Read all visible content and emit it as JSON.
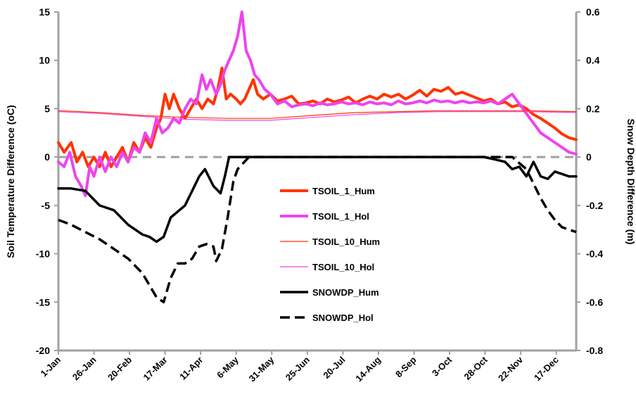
{
  "chart_data": {
    "type": "line",
    "title": "",
    "xlabel": "",
    "ylabel": "Soil Temperature Difference (oC)",
    "y2label": "Snow Depth Difference  (m)",
    "x_domain_days": [
      1,
      365
    ],
    "xticks": [
      {
        "day": 1,
        "label": "1-Jan"
      },
      {
        "day": 26,
        "label": "26-Jan"
      },
      {
        "day": 51,
        "label": "20-Feb"
      },
      {
        "day": 76,
        "label": "17-Mar"
      },
      {
        "day": 101,
        "label": "11-Apr"
      },
      {
        "day": 126,
        "label": "6-May"
      },
      {
        "day": 151,
        "label": "31-May"
      },
      {
        "day": 176,
        "label": "25-Jun"
      },
      {
        "day": 201,
        "label": "20-Jul"
      },
      {
        "day": 226,
        "label": "14-Aug"
      },
      {
        "day": 251,
        "label": "8-Sep"
      },
      {
        "day": 276,
        "label": "3-Oct"
      },
      {
        "day": 301,
        "label": "28-Oct"
      },
      {
        "day": 326,
        "label": "22-Nov"
      },
      {
        "day": 351,
        "label": "17-Dec"
      }
    ],
    "ylim": [
      -20,
      15
    ],
    "yticks": [
      -20,
      -15,
      -10,
      -5,
      0,
      5,
      10,
      15
    ],
    "ylim2": [
      -0.8,
      0.6
    ],
    "yticks2": [
      {
        "value": -0.8,
        "label": "-0.8"
      },
      {
        "value": -0.6,
        "label": "-0.6"
      },
      {
        "value": -0.4,
        "label": "-0.4"
      },
      {
        "value": -0.2,
        "label": "-0.2"
      },
      {
        "value": 0,
        "label": "0"
      },
      {
        "value": 0.2,
        "label": "0.2"
      },
      {
        "value": 0.4,
        "label": "0.4"
      },
      {
        "value": 0.6,
        "label": "0.6"
      }
    ],
    "zero_line_color": "#a0a0a0",
    "axis_color": "#a0a0a0",
    "legend_position": "center",
    "series": [
      {
        "name": "TSOIL_1_Hum",
        "axis": "left",
        "color": "#ff3300",
        "width": 4,
        "dash": "",
        "points": [
          [
            1,
            1.5
          ],
          [
            5,
            0.5
          ],
          [
            10,
            1.5
          ],
          [
            14,
            -0.5
          ],
          [
            18,
            0.5
          ],
          [
            22,
            -1
          ],
          [
            26,
            0
          ],
          [
            30,
            -1
          ],
          [
            34,
            0.5
          ],
          [
            38,
            -1
          ],
          [
            42,
            0
          ],
          [
            46,
            1
          ],
          [
            50,
            -0.5
          ],
          [
            54,
            1.5
          ],
          [
            58,
            0.5
          ],
          [
            62,
            2
          ],
          [
            66,
            1
          ],
          [
            70,
            3
          ],
          [
            73,
            4
          ],
          [
            76,
            6.5
          ],
          [
            79,
            5
          ],
          [
            82,
            6.5
          ],
          [
            86,
            5
          ],
          [
            90,
            4
          ],
          [
            94,
            5
          ],
          [
            98,
            6
          ],
          [
            102,
            5
          ],
          [
            106,
            6
          ],
          [
            110,
            5.5
          ],
          [
            113,
            7
          ],
          [
            116,
            9.2
          ],
          [
            119,
            6
          ],
          [
            122,
            6.5
          ],
          [
            126,
            6
          ],
          [
            129,
            5.5
          ],
          [
            132,
            6
          ],
          [
            135,
            7
          ],
          [
            138,
            8
          ],
          [
            141,
            6.5
          ],
          [
            145,
            6
          ],
          [
            150,
            6.5
          ],
          [
            155,
            5.8
          ],
          [
            160,
            6
          ],
          [
            165,
            6.3
          ],
          [
            170,
            5.5
          ],
          [
            175,
            5.6
          ],
          [
            180,
            5.8
          ],
          [
            185,
            5.5
          ],
          [
            190,
            6
          ],
          [
            195,
            5.7
          ],
          [
            200,
            5.9
          ],
          [
            205,
            6.2
          ],
          [
            210,
            5.6
          ],
          [
            215,
            6
          ],
          [
            220,
            6.3
          ],
          [
            225,
            6
          ],
          [
            230,
            6.5
          ],
          [
            235,
            6.2
          ],
          [
            240,
            6.5
          ],
          [
            245,
            6
          ],
          [
            250,
            6.4
          ],
          [
            255,
            6.9
          ],
          [
            260,
            6.3
          ],
          [
            265,
            7
          ],
          [
            270,
            6.8
          ],
          [
            275,
            7.2
          ],
          [
            280,
            6.5
          ],
          [
            285,
            6.7
          ],
          [
            290,
            6.4
          ],
          [
            295,
            6.1
          ],
          [
            300,
            5.8
          ],
          [
            305,
            6
          ],
          [
            310,
            5.5
          ],
          [
            315,
            5.7
          ],
          [
            320,
            5.2
          ],
          [
            325,
            5.4
          ],
          [
            330,
            5
          ],
          [
            335,
            4.4
          ],
          [
            340,
            4
          ],
          [
            345,
            3.5
          ],
          [
            350,
            3
          ],
          [
            355,
            2.4
          ],
          [
            360,
            2
          ],
          [
            365,
            1.8
          ]
        ]
      },
      {
        "name": "TSOIL_1_Hol",
        "axis": "left",
        "color": "#ee44ee",
        "width": 4,
        "dash": "",
        "points": [
          [
            1,
            -0.5
          ],
          [
            5,
            -1
          ],
          [
            9,
            0.5
          ],
          [
            13,
            -2
          ],
          [
            17,
            -3
          ],
          [
            20,
            -4
          ],
          [
            23,
            -1
          ],
          [
            26,
            -2
          ],
          [
            30,
            0
          ],
          [
            34,
            -1.5
          ],
          [
            38,
            0
          ],
          [
            42,
            -1
          ],
          [
            46,
            0.5
          ],
          [
            50,
            -0.5
          ],
          [
            54,
            1
          ],
          [
            58,
            0.5
          ],
          [
            62,
            2.5
          ],
          [
            66,
            1.5
          ],
          [
            70,
            4
          ],
          [
            74,
            2.5
          ],
          [
            78,
            3
          ],
          [
            82,
            4
          ],
          [
            86,
            3.5
          ],
          [
            90,
            5
          ],
          [
            94,
            6
          ],
          [
            98,
            5.5
          ],
          [
            102,
            8.5
          ],
          [
            105,
            7
          ],
          [
            108,
            8
          ],
          [
            112,
            6.5
          ],
          [
            115,
            7.5
          ],
          [
            118,
            9
          ],
          [
            121,
            10
          ],
          [
            124,
            11
          ],
          [
            127,
            12.5
          ],
          [
            130,
            15
          ],
          [
            133,
            11
          ],
          [
            136,
            10
          ],
          [
            139,
            8.5
          ],
          [
            142,
            8
          ],
          [
            146,
            7
          ],
          [
            150,
            6.5
          ],
          [
            155,
            5.5
          ],
          [
            160,
            5.8
          ],
          [
            165,
            5.2
          ],
          [
            170,
            5.4
          ],
          [
            175,
            5.5
          ],
          [
            180,
            5.3
          ],
          [
            185,
            5.6
          ],
          [
            190,
            5.4
          ],
          [
            195,
            5.5
          ],
          [
            200,
            5.7
          ],
          [
            205,
            5.5
          ],
          [
            210,
            5.6
          ],
          [
            215,
            5.4
          ],
          [
            220,
            5.7
          ],
          [
            225,
            5.5
          ],
          [
            230,
            5.6
          ],
          [
            235,
            5.4
          ],
          [
            240,
            5.8
          ],
          [
            245,
            5.5
          ],
          [
            250,
            5.6
          ],
          [
            255,
            5.8
          ],
          [
            260,
            5.6
          ],
          [
            265,
            5.9
          ],
          [
            270,
            5.7
          ],
          [
            275,
            5.8
          ],
          [
            280,
            5.6
          ],
          [
            285,
            5.8
          ],
          [
            290,
            5.6
          ],
          [
            295,
            5.7
          ],
          [
            300,
            5.6
          ],
          [
            305,
            5.8
          ],
          [
            310,
            5.5
          ],
          [
            315,
            6
          ],
          [
            320,
            6.5
          ],
          [
            325,
            5.5
          ],
          [
            330,
            4.5
          ],
          [
            335,
            3.5
          ],
          [
            340,
            2.5
          ],
          [
            345,
            2
          ],
          [
            350,
            1.5
          ],
          [
            355,
            1
          ],
          [
            360,
            0.5
          ],
          [
            365,
            0.3
          ]
        ]
      },
      {
        "name": "TSOIL_10_Hum",
        "axis": "left",
        "color": "#ff3300",
        "width": 1.2,
        "dash": "",
        "points": [
          [
            1,
            4.8
          ],
          [
            30,
            4.6
          ],
          [
            60,
            4.3
          ],
          [
            90,
            4.1
          ],
          [
            120,
            4
          ],
          [
            150,
            4
          ],
          [
            180,
            4.3
          ],
          [
            210,
            4.6
          ],
          [
            240,
            4.7
          ],
          [
            270,
            4.8
          ],
          [
            300,
            4.8
          ],
          [
            330,
            4.8
          ],
          [
            365,
            4.7
          ]
        ]
      },
      {
        "name": "TSOIL_10_Hol",
        "axis": "left",
        "color": "#ee44ee",
        "width": 1.2,
        "dash": "",
        "points": [
          [
            1,
            4.7
          ],
          [
            30,
            4.5
          ],
          [
            60,
            4.2
          ],
          [
            90,
            3.9
          ],
          [
            120,
            3.8
          ],
          [
            150,
            3.8
          ],
          [
            180,
            4.1
          ],
          [
            210,
            4.4
          ],
          [
            240,
            4.6
          ],
          [
            270,
            4.7
          ],
          [
            300,
            4.7
          ],
          [
            330,
            4.7
          ],
          [
            365,
            4.6
          ]
        ]
      },
      {
        "name": "SNOWDP_Hum",
        "axis": "right",
        "color": "#000000",
        "width": 3.5,
        "dash": "",
        "points": [
          [
            1,
            -0.13
          ],
          [
            10,
            -0.13
          ],
          [
            20,
            -0.14
          ],
          [
            30,
            -0.2
          ],
          [
            40,
            -0.22
          ],
          [
            50,
            -0.28
          ],
          [
            60,
            -0.32
          ],
          [
            65,
            -0.33
          ],
          [
            70,
            -0.35
          ],
          [
            75,
            -0.33
          ],
          [
            80,
            -0.25
          ],
          [
            90,
            -0.2
          ],
          [
            100,
            -0.08
          ],
          [
            104,
            -0.05
          ],
          [
            110,
            -0.12
          ],
          [
            115,
            -0.15
          ],
          [
            118,
            -0.08
          ],
          [
            121,
            0
          ],
          [
            140,
            0
          ],
          [
            180,
            0
          ],
          [
            220,
            0
          ],
          [
            260,
            0
          ],
          [
            300,
            0
          ],
          [
            308,
            -0.01
          ],
          [
            315,
            -0.02
          ],
          [
            320,
            -0.05
          ],
          [
            325,
            -0.04
          ],
          [
            330,
            -0.08
          ],
          [
            335,
            -0.02
          ],
          [
            340,
            -0.08
          ],
          [
            345,
            -0.09
          ],
          [
            350,
            -0.06
          ],
          [
            355,
            -0.07
          ],
          [
            360,
            -0.08
          ],
          [
            365,
            -0.08
          ]
        ]
      },
      {
        "name": "SNOWDP_Hol",
        "axis": "right",
        "color": "#000000",
        "width": 3.5,
        "dash": "14,7",
        "points": [
          [
            1,
            -0.26
          ],
          [
            10,
            -0.28
          ],
          [
            20,
            -0.31
          ],
          [
            30,
            -0.34
          ],
          [
            40,
            -0.38
          ],
          [
            50,
            -0.42
          ],
          [
            60,
            -0.48
          ],
          [
            65,
            -0.53
          ],
          [
            70,
            -0.58
          ],
          [
            75,
            -0.6
          ],
          [
            80,
            -0.5
          ],
          [
            85,
            -0.44
          ],
          [
            90,
            -0.44
          ],
          [
            95,
            -0.42
          ],
          [
            100,
            -0.37
          ],
          [
            105,
            -0.36
          ],
          [
            110,
            -0.37
          ],
          [
            112,
            -0.43
          ],
          [
            116,
            -0.38
          ],
          [
            120,
            -0.25
          ],
          [
            124,
            -0.1
          ],
          [
            127,
            -0.05
          ],
          [
            135,
            0
          ],
          [
            180,
            0
          ],
          [
            220,
            0
          ],
          [
            260,
            0
          ],
          [
            300,
            0
          ],
          [
            320,
            0
          ],
          [
            330,
            -0.05
          ],
          [
            340,
            -0.17
          ],
          [
            345,
            -0.22
          ],
          [
            350,
            -0.26
          ],
          [
            355,
            -0.29
          ],
          [
            360,
            -0.3
          ],
          [
            365,
            -0.31
          ]
        ]
      }
    ]
  }
}
